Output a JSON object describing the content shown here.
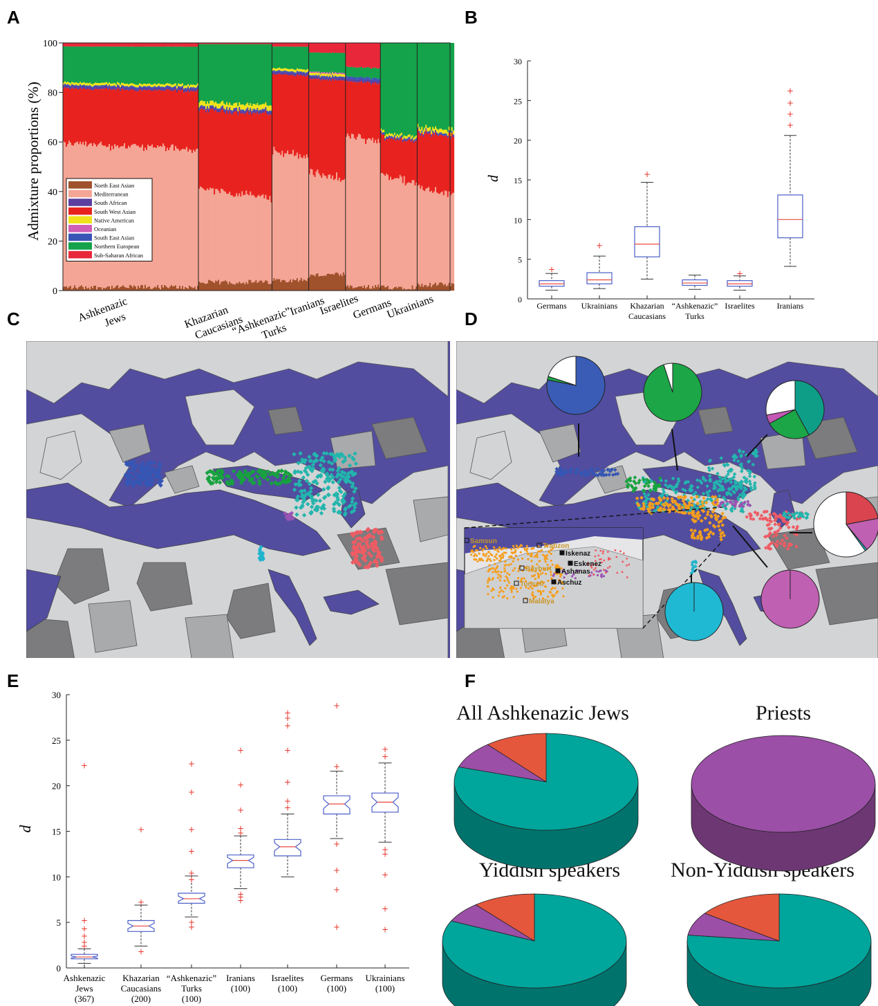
{
  "panels": {
    "a": "A",
    "b": "B",
    "c": "C",
    "d": "D",
    "e": "E",
    "f": "F"
  },
  "chart_data": [
    {
      "panel": "A",
      "type": "area",
      "ylabel": "Admixture proportions (%)",
      "ylim": [
        0,
        100
      ],
      "yticks": [
        "0",
        "20",
        "40",
        "60",
        "80",
        "100"
      ],
      "groups": [
        "Ashkenazic Jews",
        "Khazarian Caucasians",
        "“Ashkenazic” Turks",
        "Iranians",
        "Israelites",
        "Germans",
        "Ukrainians"
      ],
      "group_width_fraction": [
        0.35,
        0.19,
        0.095,
        0.095,
        0.09,
        0.095,
        0.095
      ],
      "legend_position": "bottom-left",
      "components": [
        {
          "name": "North East Asian",
          "color": "#a0522d"
        },
        {
          "name": "Mediterranean",
          "color": "#f4a595"
        },
        {
          "name": "South African",
          "color": "#5b3fa0"
        },
        {
          "name": "South West Asian",
          "color": "#e8231f"
        },
        {
          "name": "Native American",
          "color": "#f0e31c"
        },
        {
          "name": "Oceanian",
          "color": "#d05fb6"
        },
        {
          "name": "South East Asian",
          "color": "#3a55b8"
        },
        {
          "name": "Northern European",
          "color": "#14a24a"
        },
        {
          "name": "Sub-Saharan African",
          "color": "#e8283a"
        }
      ],
      "group_mean_proportions": [
        {
          "group": "Ashkenazic Jews",
          "North East Asian": 1,
          "Mediterranean": 57,
          "South West Asian": 23,
          "South African": 1,
          "Native American": 1,
          "Oceanian": 0,
          "South East Asian": 0.5,
          "Northern European": 15,
          "Sub-Saharan African": 1.5
        },
        {
          "group": "Khazarian Caucasians",
          "North East Asian": 3,
          "Mediterranean": 36,
          "South West Asian": 33,
          "South African": 1,
          "Native American": 2,
          "Oceanian": 0,
          "South East Asian": 0.5,
          "Northern European": 24,
          "Sub-Saharan African": 0.5
        },
        {
          "group": "“Ashkenazic” Turks",
          "North East Asian": 4,
          "Mediterranean": 51,
          "South West Asian": 32,
          "South African": 1,
          "Native American": 1,
          "Oceanian": 0,
          "South East Asian": 0.5,
          "Northern European": 9,
          "Sub-Saharan African": 1.5
        },
        {
          "group": "Iranians",
          "North East Asian": 6,
          "Mediterranean": 40,
          "South West Asian": 39,
          "South African": 1,
          "Native American": 1,
          "Oceanian": 0.5,
          "South East Asian": 0.5,
          "Northern European": 8,
          "Sub-Saharan African": 4
        },
        {
          "group": "Israelites",
          "North East Asian": 1,
          "Mediterranean": 60,
          "South West Asian": 23,
          "South African": 1,
          "Native American": 0,
          "Oceanian": 0,
          "South East Asian": 1,
          "Northern European": 4,
          "Sub-Saharan African": 10
        },
        {
          "group": "Germans",
          "North East Asian": 1,
          "Mediterranean": 44,
          "South West Asian": 16,
          "South African": 0.5,
          "Native American": 1,
          "Oceanian": 0,
          "South East Asian": 0.5,
          "Northern European": 37,
          "Sub-Saharan African": 0
        },
        {
          "group": "Ukrainians",
          "North East Asian": 2,
          "Mediterranean": 38,
          "South West Asian": 23,
          "South African": 0.5,
          "Native American": 1.5,
          "Oceanian": 0,
          "South East Asian": 0.5,
          "Northern European": 34.5,
          "Sub-Saharan African": 0
        }
      ]
    },
    {
      "panel": "B",
      "type": "box",
      "ylabel": "d",
      "ylim": [
        0,
        30
      ],
      "yticks": [
        "0",
        "5",
        "10",
        "15",
        "20",
        "25",
        "30"
      ],
      "categories": [
        "Germans",
        "Ukrainians",
        "Khazarian Caucasians",
        "“Ashkenazic” Turks",
        "Israelites",
        "Iranians"
      ],
      "category_lines": [
        [
          "Germans"
        ],
        [
          "Ukrainians"
        ],
        [
          "Khazarian",
          "Caucasians"
        ],
        [
          "“Ashkenazic”",
          "Turks"
        ],
        [
          "Israelites"
        ],
        [
          "Iranians"
        ]
      ],
      "boxes": [
        {
          "lo": 1.1,
          "q1": 1.6,
          "med": 1.9,
          "q3": 2.3,
          "hi": 3.2,
          "outliers": [
            3.7
          ]
        },
        {
          "lo": 1.3,
          "q1": 1.9,
          "med": 2.4,
          "q3": 3.3,
          "hi": 5.4,
          "outliers": [
            6.7
          ]
        },
        {
          "lo": 2.5,
          "q1": 5.3,
          "med": 6.9,
          "q3": 9.1,
          "hi": 14.7,
          "outliers": [
            15.7
          ]
        },
        {
          "lo": 1.2,
          "q1": 1.7,
          "med": 2.0,
          "q3": 2.4,
          "hi": 3.0,
          "outliers": []
        },
        {
          "lo": 1.1,
          "q1": 1.6,
          "med": 1.9,
          "q3": 2.3,
          "hi": 2.9,
          "outliers": [
            3.2
          ]
        },
        {
          "lo": 4.1,
          "q1": 7.7,
          "med": 10.0,
          "q3": 13.1,
          "hi": 20.6,
          "outliers": [
            21.9,
            23.3,
            24.7,
            26.2
          ]
        }
      ]
    },
    {
      "panel": "E",
      "type": "box",
      "ylabel": "d",
      "ylim": [
        0,
        30
      ],
      "yticks": [
        "0",
        "5",
        "10",
        "15",
        "20",
        "25",
        "30"
      ],
      "categories": [
        "Ashkenazic Jews (367)",
        "Khazarian Caucasians (200)",
        "“Ashkenazic” Turks (100)",
        "Iranians (100)",
        "Israelites (100)",
        "Germans (100)",
        "Ukrainians (100)"
      ],
      "category_lines": [
        [
          "Ashkenazic",
          "Jews",
          "(367)"
        ],
        [
          "Khazarian",
          "Caucasians",
          "(200)"
        ],
        [
          "“Ashkenazic”",
          "Turks",
          "(100)"
        ],
        [
          "Iranians",
          "(100)"
        ],
        [
          "Israelites",
          "(100)"
        ],
        [
          "Germans",
          "(100)"
        ],
        [
          "Ukrainians",
          "(100)"
        ]
      ],
      "boxes": [
        {
          "lo": 0.5,
          "q1": 1.0,
          "med": 1.2,
          "q3": 1.5,
          "hi": 2.1,
          "outliers": [
            2.4,
            2.8,
            3.5,
            4.3,
            5.2,
            22.2
          ]
        },
        {
          "lo": 2.4,
          "q1": 4.0,
          "med": 4.6,
          "q3": 5.2,
          "hi": 6.9,
          "outliers": [
            1.8,
            7.2,
            15.2
          ]
        },
        {
          "lo": 5.6,
          "q1": 7.1,
          "med": 7.6,
          "q3": 8.2,
          "hi": 10.1,
          "outliers": [
            4.5,
            5.0,
            9.7,
            10.4,
            12.8,
            15.2,
            19.3,
            22.4
          ]
        },
        {
          "lo": 8.7,
          "q1": 11.0,
          "med": 11.8,
          "q3": 12.4,
          "hi": 14.5,
          "outliers": [
            7.4,
            7.8,
            8.1,
            14.8,
            15.3,
            17.3,
            20.1,
            23.9
          ]
        },
        {
          "lo": 10.0,
          "q1": 12.3,
          "med": 13.3,
          "q3": 14.1,
          "hi": 16.9,
          "outliers": [
            17.6,
            18.3,
            20.4,
            23.9,
            26.6,
            27.4,
            28.0
          ]
        },
        {
          "lo": 14.2,
          "q1": 16.9,
          "med": 18.0,
          "q3": 18.9,
          "hi": 21.6,
          "outliers": [
            4.5,
            8.6,
            10.7,
            13.6,
            22.1,
            28.8
          ]
        },
        {
          "lo": 13.8,
          "q1": 17.1,
          "med": 18.2,
          "q3": 19.2,
          "hi": 22.5,
          "outliers": [
            4.2,
            6.5,
            10.2,
            12.5,
            13.0,
            23.2,
            24.0
          ]
        }
      ]
    },
    {
      "panel": "F",
      "type": "pie",
      "pies": [
        {
          "title": "All Ashkenazic Jews",
          "slices": [
            {
              "color": "#00a59b",
              "value": 0.8
            },
            {
              "color": "#9b4fa6",
              "value": 0.09
            },
            {
              "color": "#e4573c",
              "value": 0.11
            }
          ]
        },
        {
          "title": "Priests",
          "slices": [
            {
              "color": "#9b4fa6",
              "value": 1.0
            }
          ]
        },
        {
          "title": "Yiddish speakers",
          "slices": [
            {
              "color": "#00a59b",
              "value": 0.82
            },
            {
              "color": "#9b4fa6",
              "value": 0.07
            },
            {
              "color": "#e4573c",
              "value": 0.11
            }
          ]
        },
        {
          "title": "Non-Yiddish speakers",
          "slices": [
            {
              "color": "#00a59b",
              "value": 0.77
            },
            {
              "color": "#9b4fa6",
              "value": 0.08
            },
            {
              "color": "#e4573c",
              "value": 0.15
            }
          ]
        }
      ]
    }
  ],
  "map_c": {
    "colors": {
      "sea": "#524d9f",
      "land": "#d3d4d6",
      "land_dark": "#7c7c7e",
      "land_mid": "#a9aaac"
    },
    "clusters": [
      {
        "color": "#3556b4"
      },
      {
        "color": "#17a23f"
      },
      {
        "color": "#23b5ad"
      },
      {
        "color": "#9a54b3"
      },
      {
        "color": "#20b3cd"
      },
      {
        "color": "#ef5c64"
      }
    ]
  },
  "map_d": {
    "inset_labels": [
      "Samsun",
      "Trabzon",
      "Iskenaz",
      "Eskenez",
      "Bayburt",
      "Ashanas",
      "Aschuz",
      "Tunceli",
      "Malatya"
    ],
    "pies": [
      {
        "slices": [
          {
            "color": "#3a5cb6",
            "value": 0.78
          },
          {
            "color": "#1ca647",
            "value": 0.02
          },
          {
            "color": "#ffffff",
            "value": 0.2
          }
        ]
      },
      {
        "slices": [
          {
            "color": "#1ca647",
            "value": 0.95
          },
          {
            "color": "#ffffff",
            "value": 0.05
          }
        ]
      },
      {
        "slices": [
          {
            "color": "#0e9e88",
            "value": 0.42
          },
          {
            "color": "#1ca647",
            "value": 0.25
          },
          {
            "color": "#c258b4",
            "value": 0.05
          },
          {
            "color": "#ffffff",
            "value": 0.28
          }
        ]
      },
      {
        "slices": [
          {
            "color": "#d9444f",
            "value": 0.22
          },
          {
            "color": "#c060b2",
            "value": 0.17
          },
          {
            "color": "#23b5c8",
            "value": 0.01
          },
          {
            "color": "#ffffff",
            "value": 0.6
          }
        ]
      },
      {
        "slices": [
          {
            "color": "#c060b2",
            "value": 1.0
          }
        ]
      },
      {
        "slices": [
          {
            "color": "#20b9d4",
            "value": 1.0
          }
        ]
      }
    ]
  }
}
